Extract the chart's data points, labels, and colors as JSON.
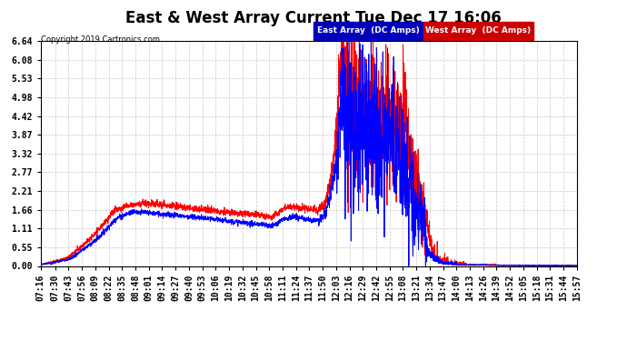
{
  "title": "East & West Array Current Tue Dec 17 16:06",
  "copyright": "Copyright 2019 Cartronics.com",
  "legend_east": "East Array  (DC Amps)",
  "legend_west": "West Array  (DC Amps)",
  "east_color": "#0000ff",
  "west_color": "#ff0000",
  "legend_east_bg": "#0000bb",
  "legend_west_bg": "#cc0000",
  "background_color": "#ffffff",
  "grid_color": "#c8c8c8",
  "yticks": [
    0.0,
    0.55,
    1.11,
    1.66,
    2.21,
    2.77,
    3.32,
    3.87,
    4.42,
    4.98,
    5.53,
    6.08,
    6.64
  ],
  "ylim": [
    0.0,
    6.64
  ],
  "title_fontsize": 12,
  "tick_fontsize": 7,
  "x_labels": [
    "07:16",
    "07:30",
    "07:43",
    "07:56",
    "08:09",
    "08:22",
    "08:35",
    "08:48",
    "09:01",
    "09:14",
    "09:27",
    "09:40",
    "09:53",
    "10:06",
    "10:19",
    "10:32",
    "10:45",
    "10:58",
    "11:11",
    "11:24",
    "11:37",
    "11:50",
    "12:03",
    "12:16",
    "12:29",
    "12:42",
    "12:55",
    "13:08",
    "13:21",
    "13:34",
    "13:47",
    "14:00",
    "14:13",
    "14:26",
    "14:39",
    "14:52",
    "15:05",
    "15:18",
    "15:31",
    "15:44",
    "15:57"
  ]
}
